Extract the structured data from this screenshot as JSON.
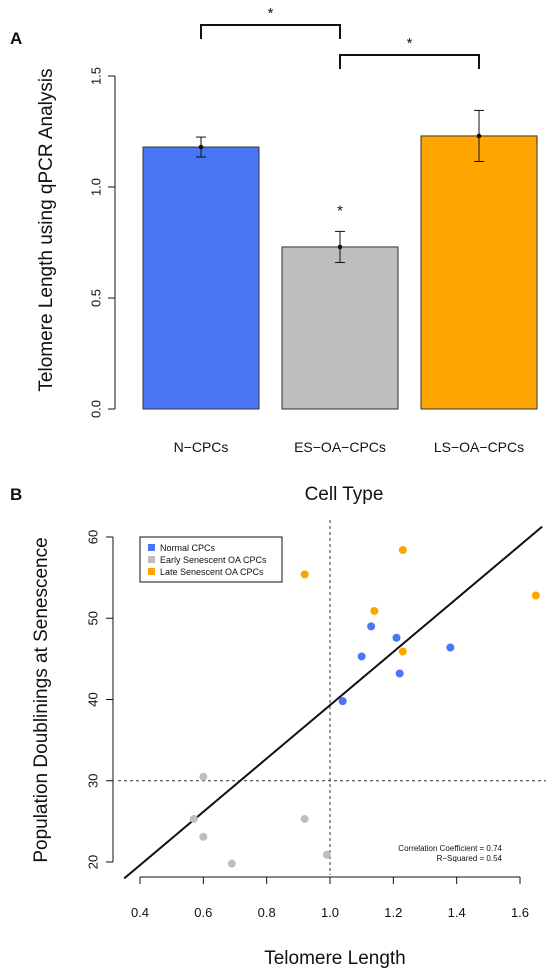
{
  "chart_data": [
    {
      "panel": "A",
      "type": "bar",
      "categories": [
        "N−CPCs",
        "ES−OA−CPCs",
        "LS−OA−CPCs"
      ],
      "values": [
        1.18,
        0.73,
        1.23
      ],
      "errors": [
        0.045,
        0.07,
        0.115
      ],
      "colors": [
        "#4876f4",
        "#bebebe",
        "#ffa500"
      ],
      "title": "",
      "xlabel": "Cell Type",
      "ylabel": "Telomere Length using qPCR Analysis",
      "ylim": [
        0,
        1.5
      ],
      "yticks": [
        "0.0",
        "0.5",
        "1.0",
        "1.5"
      ],
      "annotations": {
        "star_symbol": "*",
        "bar_star_category": "ES−OA−CPCs",
        "brackets": [
          {
            "from": "N−CPCs",
            "to": "ES−OA−CPCs",
            "label": "*"
          },
          {
            "from": "ES−OA−CPCs",
            "to": "LS−OA−CPCs",
            "label": "*"
          }
        ]
      }
    },
    {
      "panel": "B",
      "type": "scatter",
      "title": "",
      "xlabel": "Telomere Length",
      "ylabel": "Population Doublinings at Senescence",
      "xlim": [
        0.4,
        1.6
      ],
      "ylim": [
        20,
        60
      ],
      "xticks": [
        "0.4",
        "0.6",
        "0.8",
        "1.0",
        "1.2",
        "1.4",
        "1.6"
      ],
      "yticks": [
        "20",
        "30",
        "40",
        "50",
        "60"
      ],
      "legend_position": "top-left",
      "series": [
        {
          "name": "Normal CPCs",
          "color": "#4876f4",
          "points": [
            [
              1.04,
              39.8
            ],
            [
              1.1,
              45.3
            ],
            [
              1.13,
              49.0
            ],
            [
              1.21,
              47.6
            ],
            [
              1.22,
              43.2
            ],
            [
              1.38,
              46.4
            ]
          ]
        },
        {
          "name": "Early Senescent OA CPCs",
          "color": "#bebebe",
          "points": [
            [
              0.57,
              25.3
            ],
            [
              0.6,
              30.5
            ],
            [
              0.6,
              23.1
            ],
            [
              0.69,
              19.8
            ],
            [
              0.92,
              25.3
            ],
            [
              0.99,
              20.9
            ]
          ]
        },
        {
          "name": "Late Senescent OA CPCs",
          "color": "#ffa500",
          "points": [
            [
              0.92,
              55.4
            ],
            [
              1.14,
              50.9
            ],
            [
              1.23,
              58.4
            ],
            [
              1.23,
              45.9
            ],
            [
              1.65,
              52.8
            ]
          ]
        }
      ],
      "regression_line": {
        "slope": 32.8,
        "intercept": 6.5,
        "x_from": 0.35,
        "x_to": 1.67
      },
      "reference_lines": {
        "vertical_x": 1.0,
        "horizontal_y": 30
      },
      "annotations": [
        "Correlation Coefficient = 0.74",
        "R−Squared = 0.54"
      ]
    }
  ]
}
